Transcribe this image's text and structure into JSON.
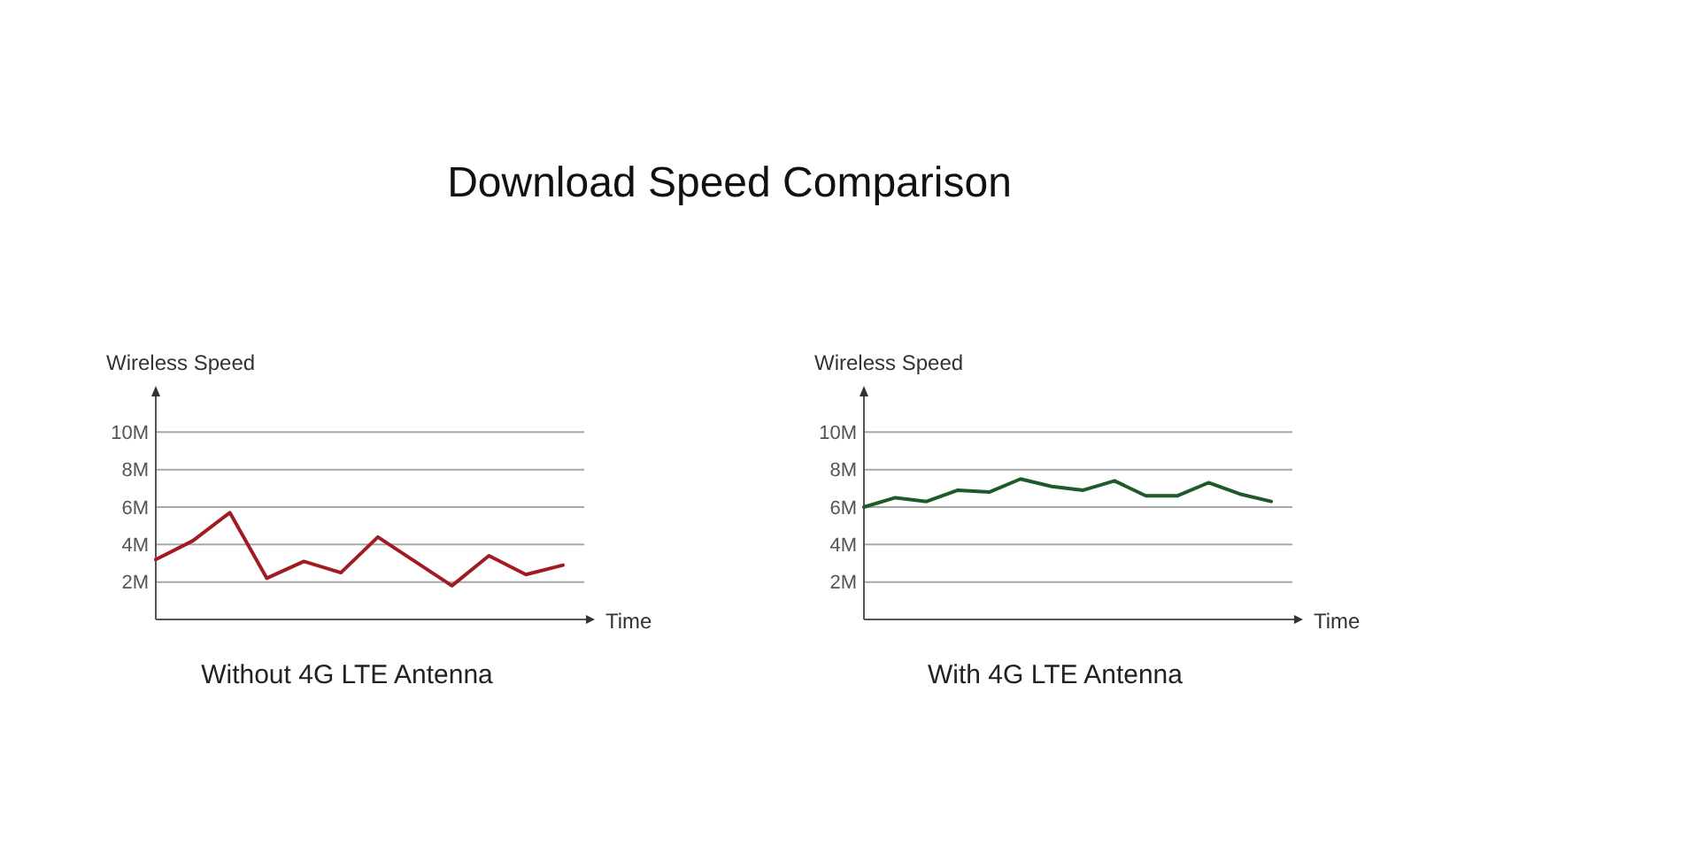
{
  "chart_data": [
    {
      "type": "line",
      "title": "Download Speed Comparison",
      "ylabel": "Wireless Speed",
      "xlabel": "Time",
      "annotations": [
        "Without 4G LTE Antenna"
      ],
      "categories": [
        null,
        null,
        null,
        null,
        null,
        null,
        null,
        null,
        null,
        null,
        null,
        null
      ],
      "series": [
        {
          "color": "#a01c22",
          "values": [
            3.2,
            4.2,
            5.7,
            2.2,
            3.1,
            2.5,
            4.4,
            3.1,
            1.8,
            3.4,
            2.4,
            2.9
          ]
        }
      ],
      "ylim": [
        0,
        12
      ],
      "yticks": [
        {
          "value": 2,
          "label": "2M"
        },
        {
          "value": 4,
          "label": "4M"
        },
        {
          "value": 6,
          "label": "6M"
        },
        {
          "value": 8,
          "label": "8M"
        },
        {
          "value": 10,
          "label": "10M"
        }
      ],
      "grid": "y",
      "tick_labels": "y",
      "marker": "none",
      "line_style": "solid"
    },
    {
      "type": "line",
      "ylabel": "Wireless Speed",
      "xlabel": "Time",
      "annotations": [
        "With 4G LTE Antenna"
      ],
      "categories": [
        null,
        null,
        null,
        null,
        null,
        null,
        null,
        null,
        null,
        null,
        null,
        null,
        null,
        null
      ],
      "series": [
        {
          "color": "#1f5a2a",
          "values": [
            6.0,
            6.5,
            6.3,
            6.9,
            6.8,
            7.5,
            7.1,
            6.9,
            7.4,
            6.6,
            6.6,
            7.3,
            6.7,
            6.3
          ]
        }
      ],
      "ylim": [
        0,
        12
      ],
      "yticks": [
        {
          "value": 2,
          "label": "2M"
        },
        {
          "value": 4,
          "label": "4M"
        },
        {
          "value": 6,
          "label": "6M"
        },
        {
          "value": 8,
          "label": "8M"
        },
        {
          "value": 10,
          "label": "10M"
        }
      ],
      "grid": "y",
      "tick_labels": "y",
      "marker": "none",
      "line_style": "solid"
    }
  ]
}
